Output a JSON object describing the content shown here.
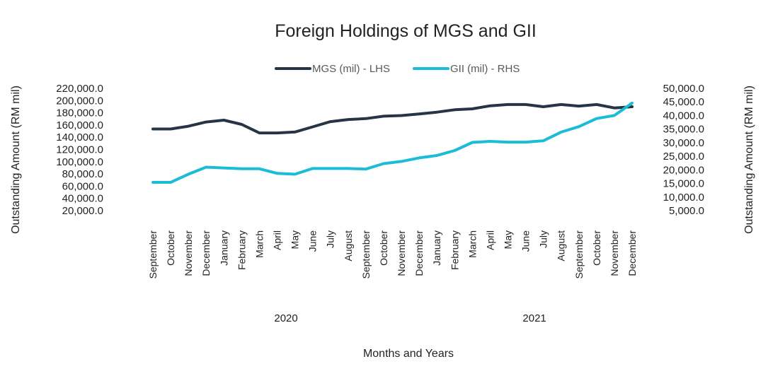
{
  "chart_data": {
    "type": "line",
    "title": "Foreign Holdings of MGS and GII",
    "xlabel": "Months and Years",
    "ylabel_left": "Outstanding Amount (RM mil)",
    "ylabel_right": "Outstanding Amount (RM mil)",
    "legend_position": "top",
    "grid": false,
    "categories": [
      "September",
      "October",
      "November",
      "December",
      "January",
      "February",
      "March",
      "April",
      "May",
      "June",
      "July",
      "August",
      "September",
      "October",
      "November",
      "December",
      "January",
      "February",
      "March",
      "April",
      "May",
      "June",
      "July",
      "August",
      "September",
      "October",
      "November",
      "December"
    ],
    "category_groups": [
      {
        "label": "2020",
        "start": 0,
        "end": 15
      },
      {
        "label": "2021",
        "start": 16,
        "end": 27
      }
    ],
    "y_left": {
      "min": 20000,
      "max": 220000,
      "step": 20000,
      "ticks": [
        "20,000.0",
        "40,000.0",
        "60,000.0",
        "80,000.0",
        "100,000.0",
        "120,000.0",
        "140,000.0",
        "160,000.0",
        "180,000.0",
        "200,000.0",
        "220,000.0"
      ]
    },
    "y_right": {
      "min": 5000,
      "max": 50000,
      "step": 5000,
      "ticks": [
        "5,000.0",
        "10,000.0",
        "15,000.0",
        "20,000.0",
        "25,000.0",
        "30,000.0",
        "35,000.0",
        "40,000.0",
        "45,000.0",
        "50,000.0"
      ]
    },
    "series": [
      {
        "name": "MGS (mil) - LHS",
        "axis": "left",
        "color": "#253545",
        "values": [
          153500,
          153500,
          158000,
          165000,
          168000,
          161000,
          147000,
          147000,
          148500,
          157000,
          165500,
          169000,
          170500,
          174500,
          175500,
          178000,
          181000,
          185000,
          186500,
          191500,
          193500,
          193500,
          190000,
          193500,
          191000,
          193500,
          188000,
          190000
        ]
      },
      {
        "name": "GII (mil) - RHS",
        "axis": "right",
        "color": "#1ABCD6",
        "values": [
          15400,
          15400,
          18400,
          21000,
          20700,
          20400,
          20400,
          18700,
          18400,
          20500,
          20500,
          20500,
          20300,
          22300,
          23100,
          24400,
          25300,
          27100,
          30100,
          30500,
          30200,
          30200,
          30700,
          33900,
          35900,
          38900,
          40000,
          44600
        ]
      }
    ]
  }
}
